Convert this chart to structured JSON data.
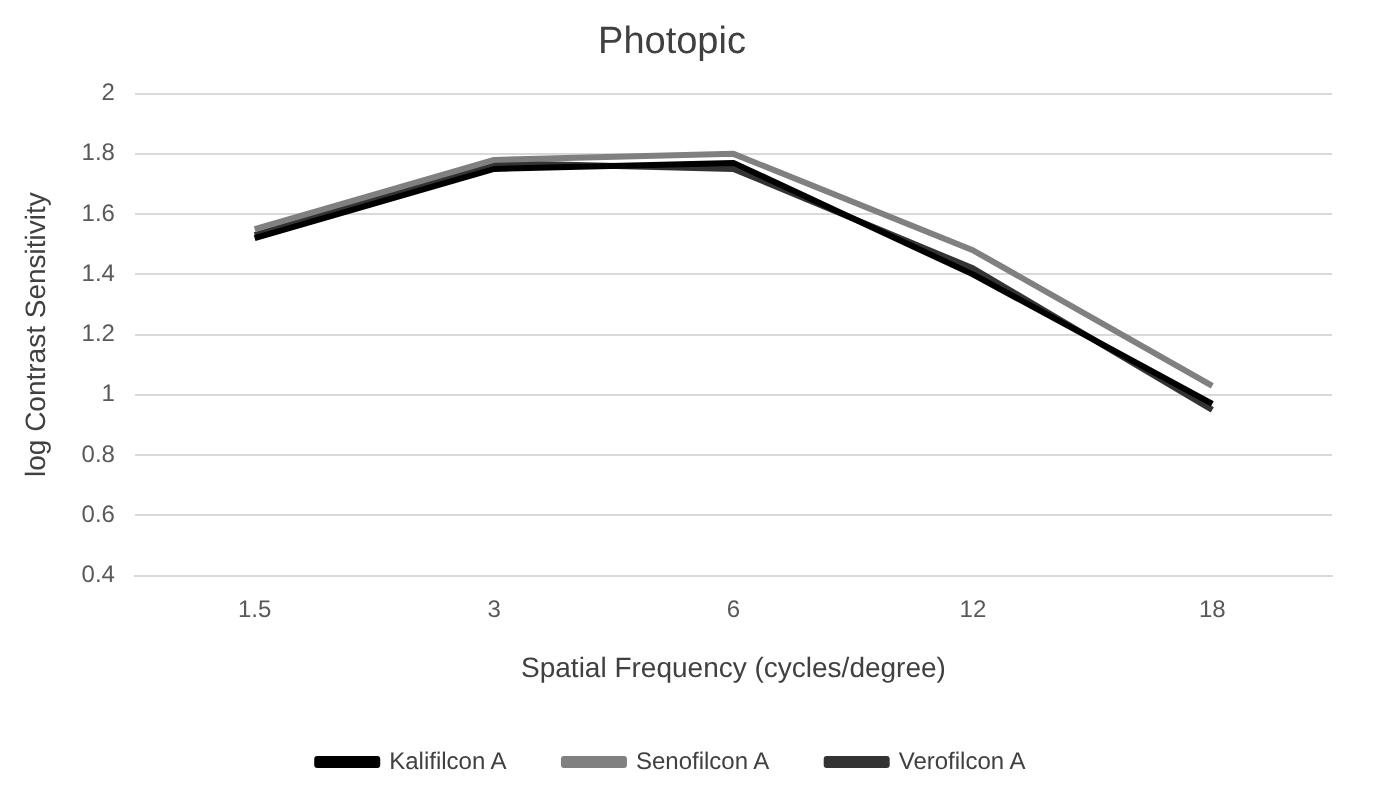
{
  "chart_data": {
    "type": "line",
    "title": "Photopic",
    "xlabel": "Spatial Frequency (cycles/degree)",
    "ylabel": "log Contrast Sensitivity",
    "categories": [
      "1.5",
      "3",
      "6",
      "12",
      "18"
    ],
    "series": [
      {
        "name": "Kalifilcon A",
        "color": "#000000",
        "values": [
          1.52,
          1.75,
          1.77,
          1.4,
          0.97
        ]
      },
      {
        "name": "Senofilcon A",
        "color": "#808080",
        "values": [
          1.55,
          1.78,
          1.8,
          1.48,
          1.03
        ]
      },
      {
        "name": "Verofilcon A",
        "color": "#333333",
        "values": [
          1.53,
          1.77,
          1.75,
          1.42,
          0.95
        ]
      }
    ],
    "ylim": [
      0.4,
      2
    ],
    "yticks": [
      0.4,
      0.6,
      0.8,
      1,
      1.2,
      1.4,
      1.6,
      1.8,
      2
    ],
    "grid": "y",
    "legend": "bottom",
    "marker": "none",
    "line_style": "solid"
  }
}
